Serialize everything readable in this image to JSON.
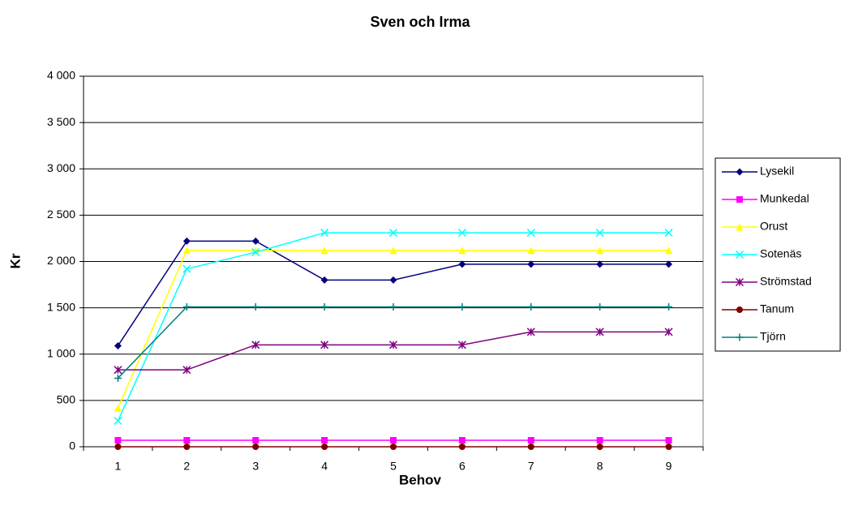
{
  "chart_data": {
    "type": "line",
    "title": "Sven och Irma",
    "x_label": "Behov",
    "y_label": "Kr",
    "categories": [
      "1",
      "2",
      "3",
      "4",
      "5",
      "6",
      "7",
      "8",
      "9"
    ],
    "series": [
      {
        "name": "Lysekil",
        "color": "#000080",
        "marker": "diamond",
        "values": [
          1090,
          2220,
          2220,
          1800,
          1800,
          1970,
          1970,
          1970,
          1970
        ]
      },
      {
        "name": "Munkedal",
        "color": "#ff00ff",
        "marker": "square",
        "values": [
          70,
          70,
          70,
          70,
          70,
          70,
          70,
          70,
          70
        ]
      },
      {
        "name": "Orust",
        "color": "#ffff00",
        "marker": "triangle",
        "values": [
          420,
          2120,
          2120,
          2120,
          2120,
          2120,
          2120,
          2120,
          2120
        ]
      },
      {
        "name": "Sotenäs",
        "color": "#00ffff",
        "marker": "x",
        "values": [
          280,
          1920,
          2100,
          2310,
          2310,
          2310,
          2310,
          2310,
          2310
        ]
      },
      {
        "name": "Strömstad",
        "color": "#800080",
        "marker": "asterisk",
        "values": [
          830,
          830,
          1100,
          1100,
          1100,
          1100,
          1240,
          1240,
          1240
        ]
      },
      {
        "name": "Tanum",
        "color": "#800000",
        "marker": "circle",
        "values": [
          0,
          0,
          0,
          0,
          0,
          0,
          0,
          0,
          0
        ]
      },
      {
        "name": "Tjörn",
        "color": "#008080",
        "marker": "plus",
        "values": [
          740,
          1510,
          1510,
          1510,
          1510,
          1510,
          1510,
          1510,
          1510
        ]
      }
    ],
    "ylim": [
      0,
      4000
    ],
    "yticks": [
      0,
      500,
      {
        "value": 1000,
        "label": "1 000"
      },
      {
        "value": 1500,
        "label": "1 500"
      },
      {
        "value": 2000,
        "label": "2 000"
      },
      {
        "value": 2500,
        "label": "2 500"
      },
      {
        "value": 3000,
        "label": "3 000"
      },
      {
        "value": 3500,
        "label": "3 500"
      },
      {
        "value": 4000,
        "label": "4 000"
      }
    ],
    "grid": true,
    "legend": "right"
  }
}
